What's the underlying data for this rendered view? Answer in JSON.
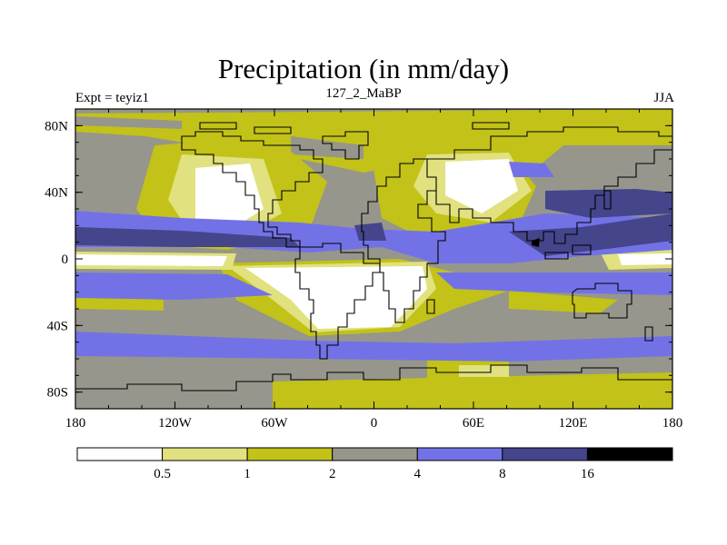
{
  "title": "Precipitation (in mm/day)",
  "subtitle_left": "Expt = teyiz1",
  "subtitle_center": "127_2_MaBP",
  "subtitle_right": "JJA",
  "map": {
    "projection": "cylindrical-equidistant",
    "lon_range": [
      -180,
      180
    ],
    "lat_range": [
      -90,
      90
    ],
    "lat_ticks": [
      {
        "value": 80,
        "label": "80N"
      },
      {
        "value": 40,
        "label": "40N"
      },
      {
        "value": 0,
        "label": "0"
      },
      {
        "value": -40,
        "label": "40S"
      },
      {
        "value": -80,
        "label": "80S"
      }
    ],
    "lon_ticks": [
      {
        "value": -180,
        "label": "180"
      },
      {
        "value": -120,
        "label": "120W"
      },
      {
        "value": -60,
        "label": "60W"
      },
      {
        "value": 0,
        "label": "0"
      },
      {
        "value": 60,
        "label": "60E"
      },
      {
        "value": 120,
        "label": "120E"
      },
      {
        "value": 180,
        "label": "180"
      }
    ],
    "field": "precipitation",
    "units": "mm/day"
  },
  "colorbar": {
    "levels": [
      "0.5",
      "1",
      "2",
      "4",
      "8",
      "16"
    ],
    "colors": [
      "#ffffff",
      "#e1e17f",
      "#c2c218",
      "#96968c",
      "#7272e6",
      "#45458c",
      "#000000"
    ]
  }
}
